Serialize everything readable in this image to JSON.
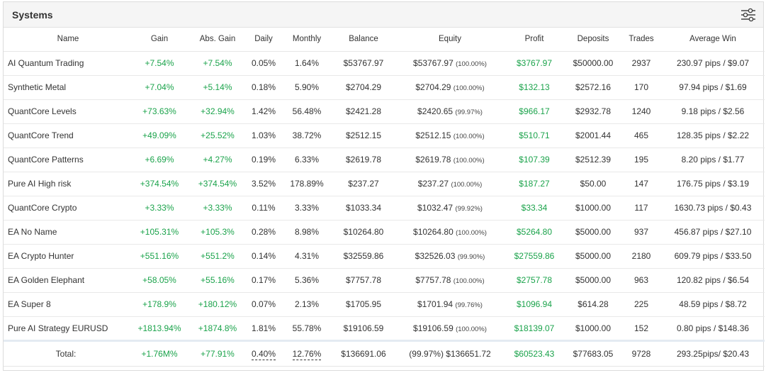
{
  "panel": {
    "title": "Systems",
    "settings_icon": "sliders-icon"
  },
  "columns": [
    "Name",
    "Gain",
    "Abs. Gain",
    "Daily",
    "Monthly",
    "Balance",
    "Equity",
    "Profit",
    "Deposits",
    "Trades",
    "Average Win"
  ],
  "rows": [
    {
      "name": "AI Quantum Trading",
      "gain": "+7.54%",
      "abs_gain": "+7.54%",
      "daily": "0.05%",
      "monthly": "1.64%",
      "balance": "$53767.97",
      "equity": "$53767.97",
      "equity_pct": "(100.00%)",
      "profit": "$3767.97",
      "deposits": "$50000.00",
      "trades": "2937",
      "avg_win": "230.97 pips / $9.07"
    },
    {
      "name": "Synthetic Metal",
      "gain": "+7.04%",
      "abs_gain": "+5.14%",
      "daily": "0.18%",
      "monthly": "5.90%",
      "balance": "$2704.29",
      "equity": "$2704.29",
      "equity_pct": "(100.00%)",
      "profit": "$132.13",
      "deposits": "$2572.16",
      "trades": "170",
      "avg_win": "97.94 pips / $1.69"
    },
    {
      "name": "QuantCore Levels",
      "gain": "+73.63%",
      "abs_gain": "+32.94%",
      "daily": "1.42%",
      "monthly": "56.48%",
      "balance": "$2421.28",
      "equity": "$2420.65",
      "equity_pct": "(99.97%)",
      "profit": "$966.17",
      "deposits": "$2932.78",
      "trades": "1240",
      "avg_win": "9.18 pips / $2.56"
    },
    {
      "name": "QuantCore Trend",
      "gain": "+49.09%",
      "abs_gain": "+25.52%",
      "daily": "1.03%",
      "monthly": "38.72%",
      "balance": "$2512.15",
      "equity": "$2512.15",
      "equity_pct": "(100.00%)",
      "profit": "$510.71",
      "deposits": "$2001.44",
      "trades": "465",
      "avg_win": "128.35 pips / $2.22"
    },
    {
      "name": "QuantCore Patterns",
      "gain": "+6.69%",
      "abs_gain": "+4.27%",
      "daily": "0.19%",
      "monthly": "6.33%",
      "balance": "$2619.78",
      "equity": "$2619.78",
      "equity_pct": "(100.00%)",
      "profit": "$107.39",
      "deposits": "$2512.39",
      "trades": "195",
      "avg_win": "8.20 pips / $1.77"
    },
    {
      "name": "Pure AI High risk",
      "gain": "+374.54%",
      "abs_gain": "+374.54%",
      "daily": "3.52%",
      "monthly": "178.89%",
      "balance": "$237.27",
      "equity": "$237.27",
      "equity_pct": "(100.00%)",
      "profit": "$187.27",
      "deposits": "$50.00",
      "trades": "147",
      "avg_win": "176.75 pips / $3.19"
    },
    {
      "name": "QuantCore Crypto",
      "gain": "+3.33%",
      "abs_gain": "+3.33%",
      "daily": "0.11%",
      "monthly": "3.33%",
      "balance": "$1033.34",
      "equity": "$1032.47",
      "equity_pct": "(99.92%)",
      "profit": "$33.34",
      "deposits": "$1000.00",
      "trades": "117",
      "avg_win": "1630.73 pips / $0.43"
    },
    {
      "name": "EA No Name",
      "gain": "+105.31%",
      "abs_gain": "+105.3%",
      "daily": "0.28%",
      "monthly": "8.98%",
      "balance": "$10264.80",
      "equity": "$10264.80",
      "equity_pct": "(100.00%)",
      "profit": "$5264.80",
      "deposits": "$5000.00",
      "trades": "937",
      "avg_win": "456.87 pips / $27.10"
    },
    {
      "name": "EA Crypto Hunter",
      "gain": "+551.16%",
      "abs_gain": "+551.2%",
      "daily": "0.14%",
      "monthly": "4.31%",
      "balance": "$32559.86",
      "equity": "$32526.03",
      "equity_pct": "(99.90%)",
      "profit": "$27559.86",
      "deposits": "$5000.00",
      "trades": "2180",
      "avg_win": "609.79 pips / $33.50"
    },
    {
      "name": "EA Golden Elephant",
      "gain": "+58.05%",
      "abs_gain": "+55.16%",
      "daily": "0.17%",
      "monthly": "5.36%",
      "balance": "$7757.78",
      "equity": "$7757.78",
      "equity_pct": "(100.00%)",
      "profit": "$2757.78",
      "deposits": "$5000.00",
      "trades": "963",
      "avg_win": "120.82 pips / $6.54"
    },
    {
      "name": "EA Super 8",
      "gain": "+178.9%",
      "abs_gain": "+180.12%",
      "daily": "0.07%",
      "monthly": "2.13%",
      "balance": "$1705.95",
      "equity": "$1701.94",
      "equity_pct": "(99.76%)",
      "profit": "$1096.94",
      "deposits": "$614.28",
      "trades": "225",
      "avg_win": "48.59 pips / $8.72"
    },
    {
      "name": "Pure AI Strategy EURUSD",
      "gain": "+1813.94%",
      "abs_gain": "+1874.8%",
      "daily": "1.81%",
      "monthly": "55.78%",
      "balance": "$19106.59",
      "equity": "$19106.59",
      "equity_pct": "(100.00%)",
      "profit": "$18139.07",
      "deposits": "$1000.00",
      "trades": "152",
      "avg_win": "0.80 pips / $148.36"
    }
  ],
  "total": {
    "label": "Total:",
    "gain": "+1.76M%",
    "abs_gain": "+77.91%",
    "daily": "0.40%",
    "monthly": "12.76%",
    "balance": "$136691.06",
    "equity": "(99.97%) $136651.72",
    "profit": "$60523.43",
    "deposits": "$77683.05",
    "trades": "9728",
    "avg_win": "293.25pips/ $20.43"
  },
  "colors": {
    "positive": "#1ba34b",
    "header_bg": "#f5f5f5",
    "total_separator": "#e4ebf2"
  }
}
